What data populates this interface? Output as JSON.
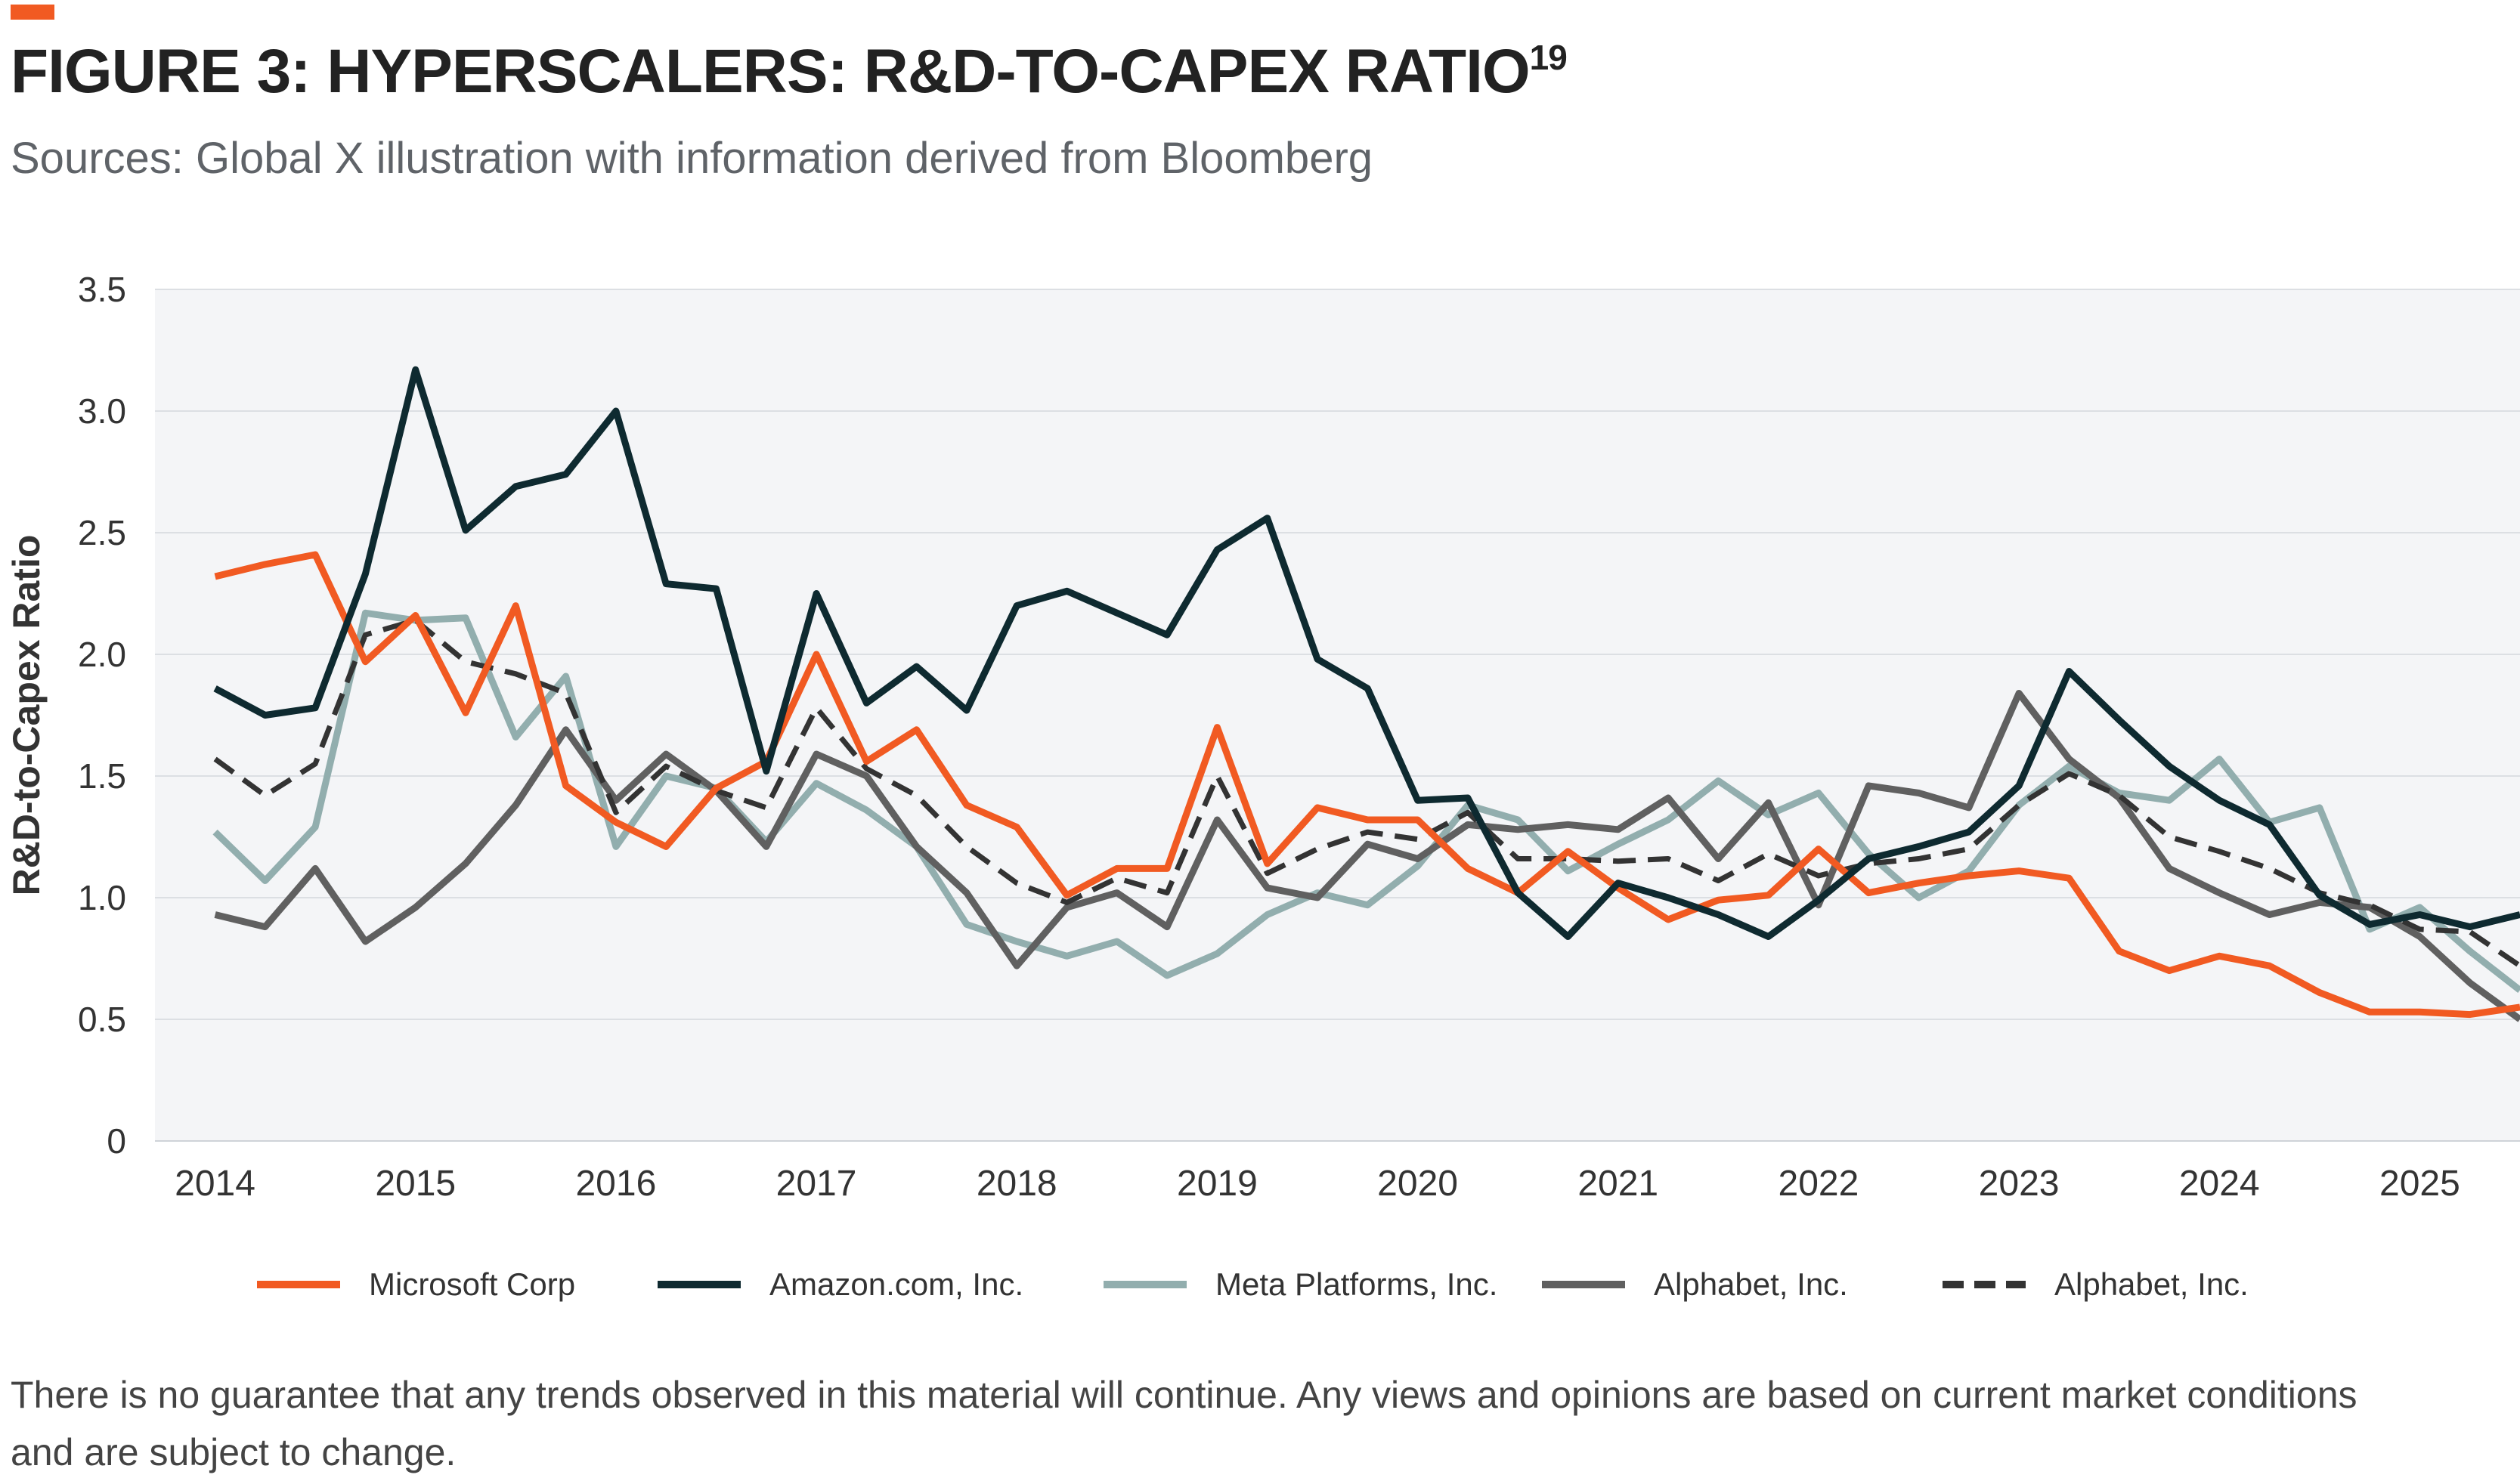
{
  "title": "FIGURE 3: HYPERSCALERS: R&D-TO-CAPEX RATIO",
  "title_superscript": "19",
  "subtitle": "Sources: Global X illustration with information derived from Bloomberg",
  "footnote": "There is no guarantee that any trends observed in this material will continue. Any views and opinions are based on current market conditions and are subject to change.",
  "colors": {
    "accent": "#f15a22",
    "plot_background": "#f4f5f7",
    "gridline": "#dcdfe3"
  },
  "chart_data": {
    "type": "line",
    "title": "FIGURE 3: HYPERSCALERS: R&D-TO-CAPEX RATIO",
    "xlabel": "",
    "ylabel": "R&D-to-Capex Ratio",
    "ylim": [
      0,
      3.5
    ],
    "xlim": [
      2014,
      2025.5
    ],
    "yticks": [
      0,
      0.5,
      1.0,
      1.5,
      2.0,
      2.5,
      3.0,
      3.5
    ],
    "ytick_labels": [
      "0",
      "0.5",
      "1.0",
      "1.5",
      "2.0",
      "2.5",
      "3.0",
      "3.5"
    ],
    "xticks": [
      2014,
      2015,
      2016,
      2017,
      2018,
      2019,
      2020,
      2021,
      2022,
      2023,
      2024,
      2025
    ],
    "xtick_labels": [
      "2014",
      "2015",
      "2016",
      "2017",
      "2018",
      "2019",
      "2020",
      "2021",
      "2022",
      "2023",
      "2024",
      "2025"
    ],
    "grid": true,
    "legend_position": "bottom",
    "x": [
      2014.0,
      2014.25,
      2014.5,
      2014.75,
      2015.0,
      2015.25,
      2015.5,
      2015.75,
      2016.0,
      2016.25,
      2016.5,
      2016.75,
      2017.0,
      2017.25,
      2017.5,
      2017.75,
      2018.0,
      2018.25,
      2018.5,
      2018.75,
      2019.0,
      2019.25,
      2019.5,
      2019.75,
      2020.0,
      2020.25,
      2020.5,
      2020.75,
      2021.0,
      2021.25,
      2021.5,
      2021.75,
      2022.0,
      2022.25,
      2022.5,
      2022.75,
      2023.0,
      2023.25,
      2023.5,
      2023.75,
      2024.0,
      2024.25,
      2024.5,
      2024.75,
      2025.0,
      2025.25,
      2025.5
    ],
    "series": [
      {
        "name": "Microsoft Corp",
        "color": "#f15a22",
        "dash": "solid",
        "values": [
          2.32,
          2.37,
          2.41,
          1.97,
          2.16,
          1.76,
          2.2,
          1.46,
          1.31,
          1.21,
          1.45,
          1.56,
          2.0,
          1.56,
          1.69,
          1.38,
          1.29,
          1.01,
          1.12,
          1.12,
          1.7,
          1.14,
          1.37,
          1.32,
          1.32,
          1.12,
          1.02,
          1.19,
          1.04,
          0.91,
          0.99,
          1.01,
          1.2,
          1.02,
          1.06,
          1.09,
          1.11,
          1.08,
          0.78,
          0.7,
          0.76,
          0.72,
          0.61,
          0.53,
          0.53,
          0.52,
          0.55
        ]
      },
      {
        "name": "Amazon.com, Inc.",
        "color": "#0e2a30",
        "dash": "solid",
        "values": [
          1.86,
          1.75,
          1.78,
          2.33,
          3.17,
          2.51,
          2.69,
          2.74,
          3.0,
          2.29,
          2.27,
          1.52,
          2.25,
          1.8,
          1.95,
          1.77,
          2.2,
          2.26,
          2.17,
          2.08,
          2.43,
          2.56,
          1.98,
          1.86,
          1.4,
          1.41,
          1.02,
          0.84,
          1.06,
          1.0,
          0.93,
          0.84,
          0.99,
          1.16,
          1.21,
          1.27,
          1.46,
          1.93,
          1.73,
          1.54,
          1.4,
          1.3,
          1.01,
          0.89,
          0.93,
          0.88,
          0.93
        ]
      },
      {
        "name": "Meta Platforms, Inc.",
        "color": "#92aeae",
        "dash": "solid",
        "values": [
          1.27,
          1.07,
          1.29,
          2.17,
          2.14,
          2.15,
          1.66,
          1.91,
          1.21,
          1.5,
          1.45,
          1.23,
          1.47,
          1.36,
          1.21,
          0.89,
          0.82,
          0.76,
          0.82,
          0.68,
          0.77,
          0.93,
          1.02,
          0.97,
          1.13,
          1.38,
          1.32,
          1.11,
          1.22,
          1.32,
          1.48,
          1.34,
          1.43,
          1.18,
          1.0,
          1.11,
          1.38,
          1.54,
          1.43,
          1.4,
          1.57,
          1.31,
          1.37,
          0.87,
          0.96,
          0.78,
          0.62
        ]
      },
      {
        "name": "Alphabet, Inc.",
        "color": "#606060",
        "dash": "solid",
        "values": [
          0.93,
          0.88,
          1.12,
          0.82,
          0.96,
          1.14,
          1.38,
          1.69,
          1.4,
          1.59,
          1.44,
          1.21,
          1.59,
          1.5,
          1.21,
          1.02,
          0.72,
          0.96,
          1.02,
          0.88,
          1.32,
          1.04,
          1.0,
          1.22,
          1.16,
          1.3,
          1.28,
          1.3,
          1.28,
          1.41,
          1.16,
          1.39,
          0.97,
          1.46,
          1.43,
          1.37,
          1.84,
          1.57,
          1.41,
          1.12,
          1.02,
          0.93,
          0.98,
          0.96,
          0.84,
          0.65,
          0.5
        ]
      },
      {
        "name": "Alphabet, Inc.",
        "color": "#333333",
        "dash": "dashed",
        "values": [
          1.57,
          1.42,
          1.55,
          2.08,
          2.14,
          1.97,
          1.92,
          1.84,
          1.35,
          1.54,
          1.44,
          1.37,
          1.78,
          1.53,
          1.42,
          1.21,
          1.06,
          0.98,
          1.08,
          1.02,
          1.5,
          1.1,
          1.2,
          1.27,
          1.24,
          1.35,
          1.16,
          1.16,
          1.15,
          1.16,
          1.07,
          1.18,
          1.09,
          1.14,
          1.16,
          1.2,
          1.38,
          1.51,
          1.42,
          1.25,
          1.19,
          1.12,
          1.02,
          0.97,
          0.87,
          0.86,
          0.72
        ]
      }
    ]
  }
}
